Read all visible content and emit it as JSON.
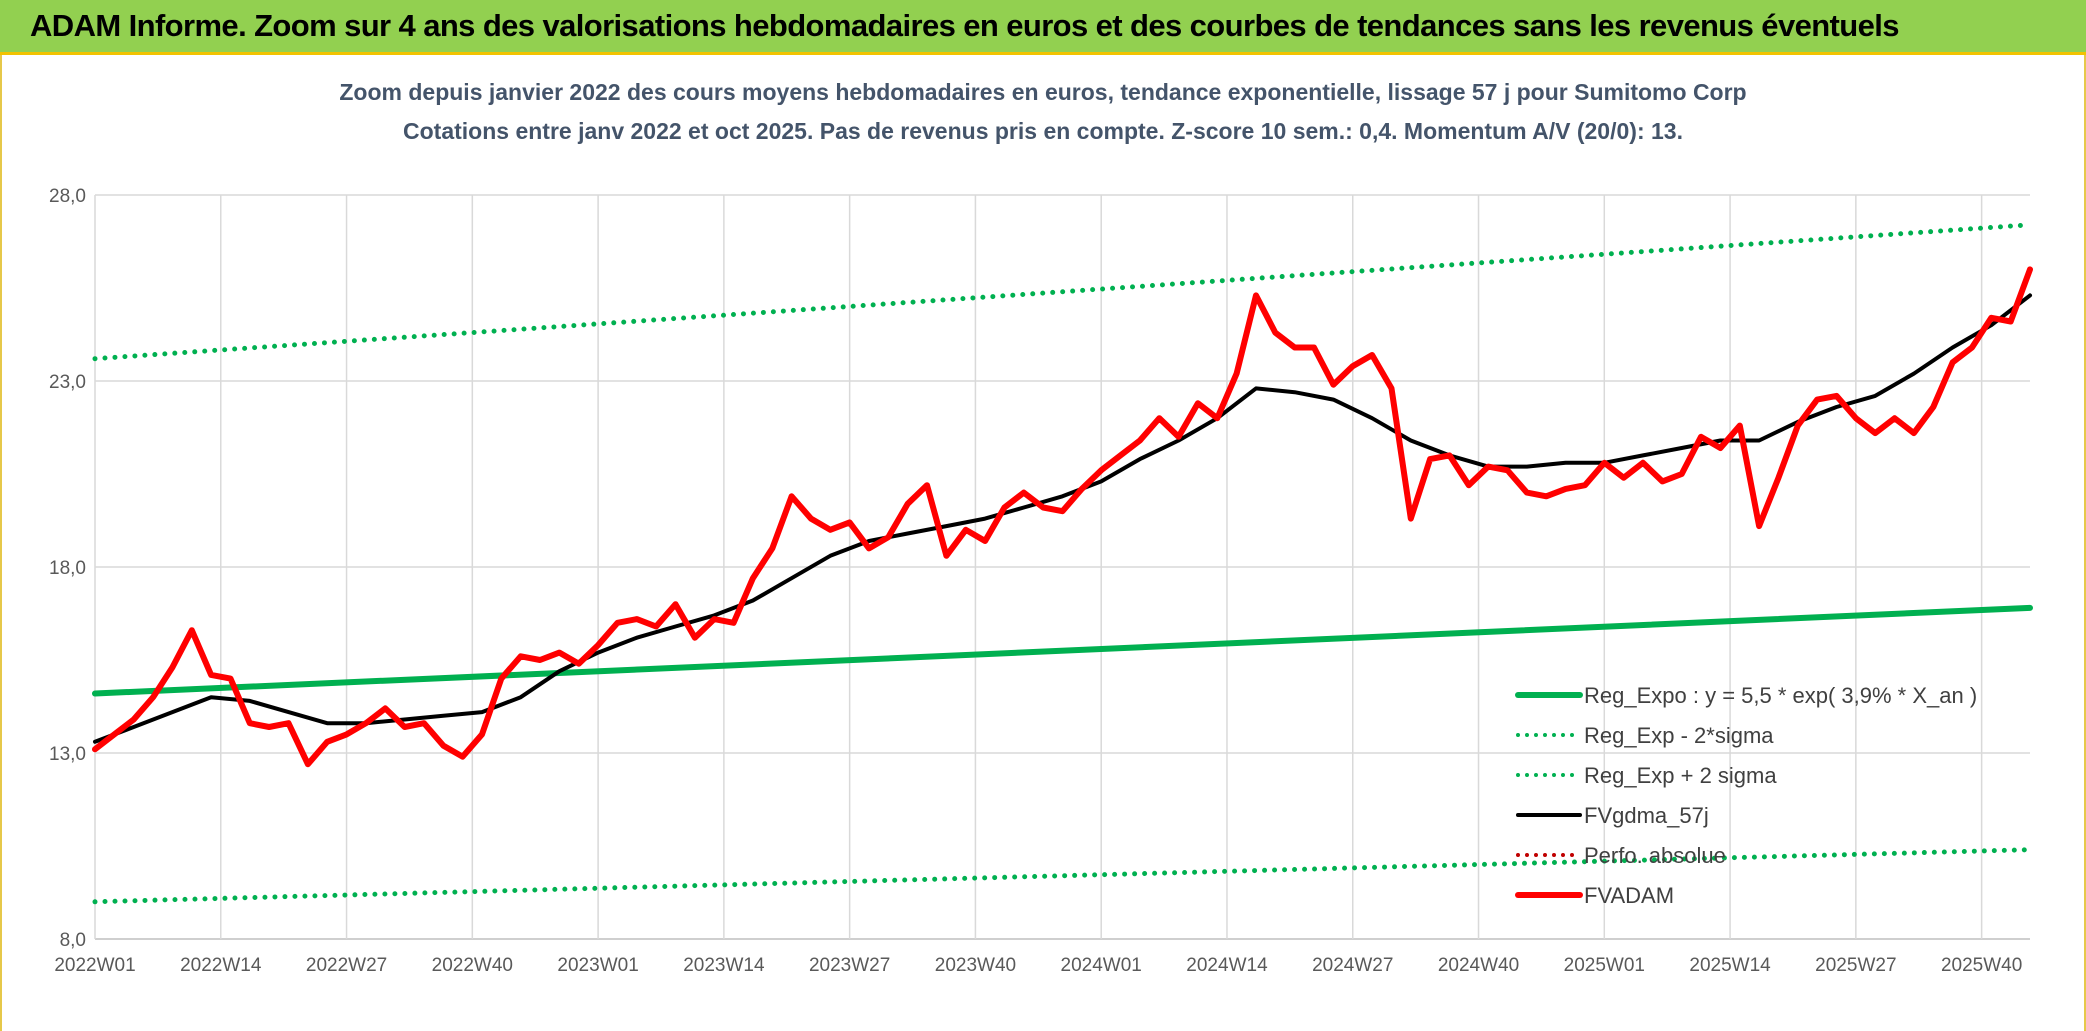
{
  "banner": {
    "title": "ADAM Informe. Zoom sur 4 ans des valorisations hebdomadaires en euros et des courbes de tendances sans les revenus éventuels"
  },
  "colors": {
    "banner_bg": "#92d050",
    "banner_border": "#f2c200",
    "reg_expo": "#00b050",
    "fvgdma": "#000000",
    "fvadam": "#ff0000",
    "perfo": "#c00000",
    "title_text": "#44546a"
  },
  "chart_data": {
    "type": "line",
    "title_line1": "Zoom depuis janvier 2022 des cours moyens hebdomadaires en euros, tendance exponentielle, lissage 57 j pour Sumitomo Corp",
    "title_line2": "Cotations entre janv 2022 et oct 2025. Pas de revenus pris en compte. Z-score 10 sem.: 0,4. Momentum A/V (20/0): 13.",
    "x_tick_labels": [
      "2022W01",
      "2022W14",
      "2022W27",
      "2022W40",
      "2023W01",
      "2023W14",
      "2023W27",
      "2023W40",
      "2024W01",
      "2024W14",
      "2024W27",
      "2024W40",
      "2025W01",
      "2025W14",
      "2025W27",
      "2025W40"
    ],
    "x_tick_index": [
      0,
      13,
      26,
      39,
      52,
      65,
      78,
      91,
      104,
      117,
      130,
      143,
      156,
      169,
      182,
      195
    ],
    "x_range": [
      0,
      200
    ],
    "y_tick_labels": [
      "8,0",
      "13,0",
      "18,0",
      "23,0",
      "28,0"
    ],
    "y_ticks": [
      8,
      13,
      18,
      23,
      28
    ],
    "ylim": [
      8,
      28
    ],
    "grid": true,
    "legend_position": "bottom-right",
    "legend": [
      {
        "label": "Reg_Expo : y = 5,5 * exp( 3,9% *  X_an )",
        "style": "solid",
        "color": "#00b050"
      },
      {
        "label": "Reg_Exp - 2*sigma",
        "style": "dotted",
        "color": "#00b050"
      },
      {
        "label": "Reg_Exp + 2 sigma",
        "style": "dotted",
        "color": "#00b050"
      },
      {
        "label": "FVgdma_57j",
        "style": "solid",
        "color": "#000000"
      },
      {
        "label": "Perfo. absolue",
        "style": "dotted",
        "color": "#c00000"
      },
      {
        "label": "FVADAM",
        "style": "solid",
        "color": "#ff0000"
      }
    ],
    "series": [
      {
        "name": "Reg_Expo : y = 5,5 * exp( 3,9% *  X_an )",
        "style": "solid",
        "x": [
          0,
          200
        ],
        "y": [
          14.6,
          16.9
        ]
      },
      {
        "name": "Reg_Exp - 2*sigma",
        "style": "dotted",
        "x": [
          0,
          200
        ],
        "y": [
          9.0,
          10.4
        ]
      },
      {
        "name": "Reg_Exp + 2 sigma",
        "style": "dotted",
        "x": [
          0,
          200
        ],
        "y": [
          23.6,
          27.2
        ]
      },
      {
        "name": "FVgdma_57j",
        "style": "solid",
        "x": [
          0,
          4,
          8,
          12,
          16,
          20,
          24,
          28,
          32,
          36,
          40,
          44,
          48,
          52,
          56,
          60,
          64,
          68,
          72,
          76,
          80,
          84,
          88,
          92,
          96,
          100,
          104,
          108,
          112,
          116,
          120,
          124,
          128,
          132,
          136,
          140,
          144,
          148,
          152,
          156,
          160,
          164,
          168,
          172,
          176,
          180,
          184,
          188,
          192,
          196,
          200
        ],
        "y": [
          13.3,
          13.7,
          14.1,
          14.5,
          14.4,
          14.1,
          13.8,
          13.8,
          13.9,
          14.0,
          14.1,
          14.5,
          15.2,
          15.7,
          16.1,
          16.4,
          16.7,
          17.1,
          17.7,
          18.3,
          18.7,
          18.9,
          19.1,
          19.3,
          19.6,
          19.9,
          20.3,
          20.9,
          21.4,
          22.0,
          22.8,
          22.7,
          22.5,
          22.0,
          21.4,
          21.0,
          20.7,
          20.7,
          20.8,
          20.8,
          21.0,
          21.2,
          21.4,
          21.4,
          21.9,
          22.3,
          22.6,
          23.2,
          23.9,
          24.5,
          25.3
        ]
      },
      {
        "name": "FVADAM",
        "style": "solid",
        "x": [
          0,
          2,
          4,
          6,
          8,
          10,
          12,
          14,
          16,
          18,
          20,
          22,
          24,
          26,
          28,
          30,
          32,
          34,
          36,
          38,
          40,
          42,
          44,
          46,
          48,
          50,
          52,
          54,
          56,
          58,
          60,
          62,
          64,
          66,
          68,
          70,
          72,
          74,
          76,
          78,
          80,
          82,
          84,
          86,
          88,
          90,
          92,
          94,
          96,
          98,
          100,
          102,
          104,
          106,
          108,
          110,
          112,
          114,
          116,
          118,
          120,
          122,
          124,
          126,
          128,
          130,
          132,
          134,
          136,
          138,
          140,
          142,
          144,
          146,
          148,
          150,
          152,
          154,
          156,
          158,
          160,
          162,
          164,
          166,
          168,
          170,
          172,
          174,
          176,
          178,
          180,
          182,
          184,
          186,
          188,
          190,
          192,
          194,
          196,
          198,
          200
        ],
        "y": [
          13.1,
          13.5,
          13.9,
          14.5,
          15.3,
          16.3,
          15.1,
          15.0,
          13.8,
          13.7,
          13.8,
          12.7,
          13.3,
          13.5,
          13.8,
          14.2,
          13.7,
          13.8,
          13.2,
          12.9,
          13.5,
          15.0,
          15.6,
          15.5,
          15.7,
          15.4,
          15.9,
          16.5,
          16.6,
          16.4,
          17.0,
          16.1,
          16.6,
          16.5,
          17.7,
          18.5,
          19.9,
          19.3,
          19.0,
          19.2,
          18.5,
          18.8,
          19.7,
          20.2,
          18.3,
          19.0,
          18.7,
          19.6,
          20.0,
          19.6,
          19.5,
          20.1,
          20.6,
          21.0,
          21.4,
          22.0,
          21.5,
          22.4,
          22.0,
          23.2,
          25.3,
          24.3,
          23.9,
          23.9,
          22.9,
          23.4,
          23.7,
          22.8,
          19.3,
          20.9,
          21.0,
          20.2,
          20.7,
          20.6,
          20.0,
          19.9,
          20.1,
          20.2,
          20.8,
          20.4,
          20.8,
          20.3,
          20.5,
          21.5,
          21.2,
          21.8,
          19.1,
          20.4,
          21.8,
          22.5,
          22.6,
          22.0,
          21.6,
          22.0,
          21.6,
          22.3,
          23.5,
          23.9,
          24.7,
          24.6,
          26.0
        ]
      }
    ]
  }
}
